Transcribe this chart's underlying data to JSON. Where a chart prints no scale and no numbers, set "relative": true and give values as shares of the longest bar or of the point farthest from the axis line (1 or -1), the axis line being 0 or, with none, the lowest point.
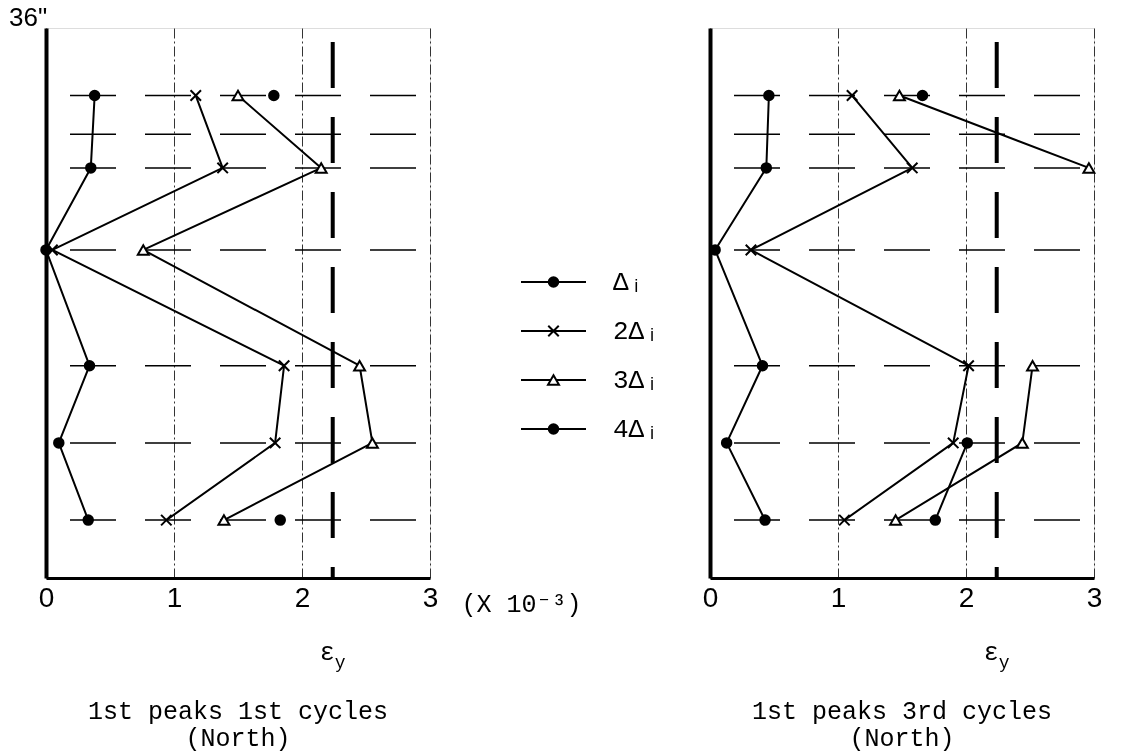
{
  "chart_data": [
    {
      "type": "line",
      "title": "1st peaks 1st cycles\n(North)",
      "xlabel": "(X 10⁻³)",
      "annotations": [
        "36\""
      ],
      "relative": true,
      "xlim": [
        0,
        3
      ],
      "xticks": [
        0,
        1,
        2,
        3
      ],
      "grid": "x",
      "legend": "right",
      "series": [
        {
          "name": "Δᵢ",
          "color": "#000000",
          "marker": "circle",
          "x": [
            0.38,
            0.35,
            0,
            0.34,
            0.1,
            0.33
          ],
          "values": [
            1,
            0.85,
            0.68,
            0.44,
            0.28,
            0.12
          ]
        },
        {
          "name": "2Δᵢ",
          "color": "#000000",
          "marker": "cross",
          "x": [
            1.17,
            1.38,
            0.05,
            1.86,
            1.79,
            0.94
          ],
          "values": [
            1,
            0.85,
            0.68,
            0.44,
            0.28,
            0.12
          ]
        },
        {
          "name": "3Δᵢ",
          "color": "#000000",
          "marker": "triangle",
          "x": [
            1.5,
            2.15,
            0.76,
            2.45,
            2.55,
            1.39
          ],
          "values": [
            1,
            0.85,
            0.68,
            0.44,
            0.28,
            0.12
          ]
        },
        {
          "name": "4Δᵢ",
          "color": "#000000",
          "marker": "circle",
          "x": [
            1.78,
            null,
            1.83
          ],
          "values": [
            1,
            null,
            0.12
          ]
        }
      ],
      "ref_lines": [
        {
          "axis": "x",
          "value": 2.24,
          "label": "ε$_{y}$",
          "line_style": "dashed"
        },
        {
          "axis": "y",
          "value": 1,
          "line_style": "dashed"
        },
        {
          "axis": "y",
          "value": 0.92,
          "line_style": "dashed"
        },
        {
          "axis": "y",
          "value": 0.85,
          "line_style": "dashed"
        },
        {
          "axis": "y",
          "value": 0.68,
          "line_style": "dashed"
        },
        {
          "axis": "y",
          "value": 0.44,
          "line_style": "dashed"
        },
        {
          "axis": "y",
          "value": 0.28,
          "line_style": "dashed"
        },
        {
          "axis": "y",
          "value": 0.12,
          "line_style": "dashed"
        }
      ]
    },
    {
      "type": "line",
      "title": "1st peaks 3rd cycles\n(North)",
      "relative": true,
      "xlim": [
        0,
        3
      ],
      "xticks": [
        0,
        1,
        2,
        3
      ],
      "grid": "x",
      "series": [
        {
          "color": "#000000",
          "marker": "circle",
          "x": [
            0.46,
            0.44,
            0.04,
            0.41,
            0.13,
            0.43
          ],
          "values": [
            1,
            0.85,
            0.68,
            0.44,
            0.28,
            0.12
          ]
        },
        {
          "color": "#000000",
          "marker": "cross",
          "x": [
            1.11,
            1.58,
            0.32,
            2.02,
            1.9,
            1.05
          ],
          "values": [
            1,
            0.85,
            0.68,
            0.44,
            0.28,
            0.12
          ]
        },
        {
          "color": "#000000",
          "marker": "triangle",
          "x": [
            1.48,
            2.96,
            null,
            2.52,
            2.44,
            1.45
          ],
          "values": [
            1,
            0.85,
            null,
            0.44,
            0.28,
            0.12
          ]
        },
        {
          "color": "#000000",
          "marker": "circle",
          "x": [
            1.66,
            null,
            2.01,
            1.76
          ],
          "values": [
            1,
            null,
            0.28,
            0.12
          ]
        }
      ],
      "ref_lines": [
        {
          "axis": "x",
          "value": 2.24,
          "label": "ε$_{y}$",
          "line_style": "dashed"
        },
        {
          "axis": "y",
          "value": 1,
          "line_style": "dashed"
        },
        {
          "axis": "y",
          "value": 0.92,
          "line_style": "dashed"
        },
        {
          "axis": "y",
          "value": 0.85,
          "line_style": "dashed"
        },
        {
          "axis": "y",
          "value": 0.68,
          "line_style": "dashed"
        },
        {
          "axis": "y",
          "value": 0.44,
          "line_style": "dashed"
        },
        {
          "axis": "y",
          "value": 0.28,
          "line_style": "dashed"
        },
        {
          "axis": "y",
          "value": 0.12,
          "line_style": "dashed"
        }
      ]
    }
  ]
}
